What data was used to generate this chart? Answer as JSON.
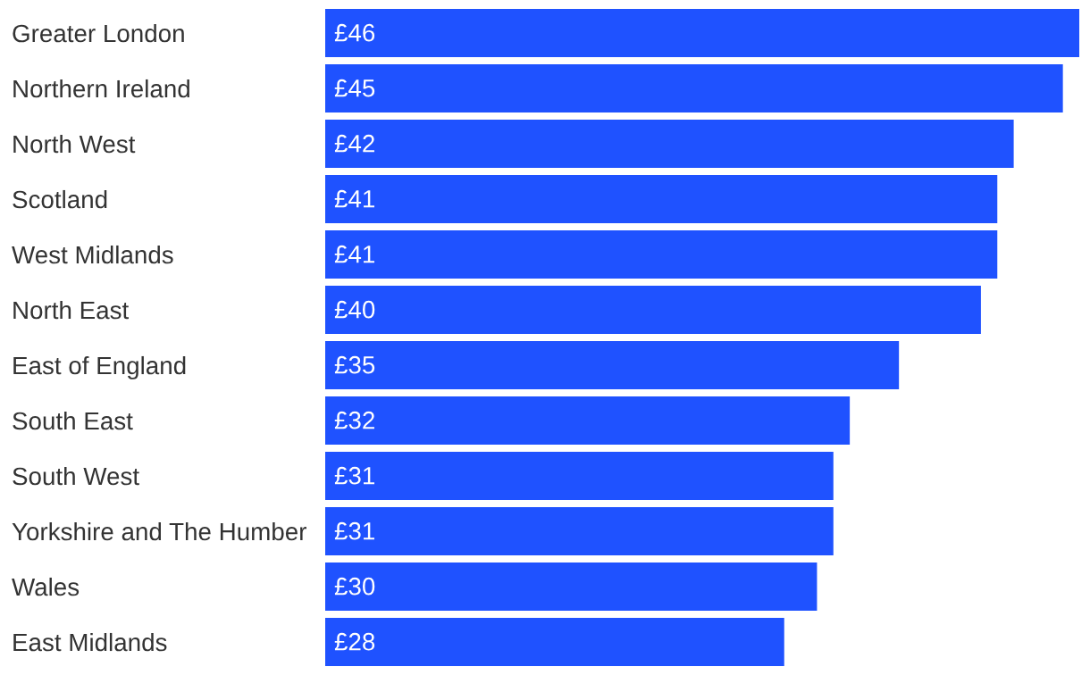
{
  "chart_data": {
    "type": "bar",
    "orientation": "horizontal",
    "categories": [
      "Greater London",
      "Northern Ireland",
      "North West",
      "Scotland",
      "West Midlands",
      "North East",
      "East of England",
      "South East",
      "South West",
      "Yorkshire and The Humber",
      "Wales",
      "East Midlands"
    ],
    "values": [
      46,
      45,
      42,
      41,
      41,
      40,
      35,
      32,
      31,
      31,
      30,
      28
    ],
    "value_labels": [
      "£46",
      "£45",
      "£42",
      "£41",
      "£41",
      "£40",
      "£35",
      "£32",
      "£31",
      "£31",
      "£30",
      "£28"
    ],
    "color": "#1f52ff",
    "xlim": [
      0,
      46
    ],
    "tick_labels": "y"
  }
}
